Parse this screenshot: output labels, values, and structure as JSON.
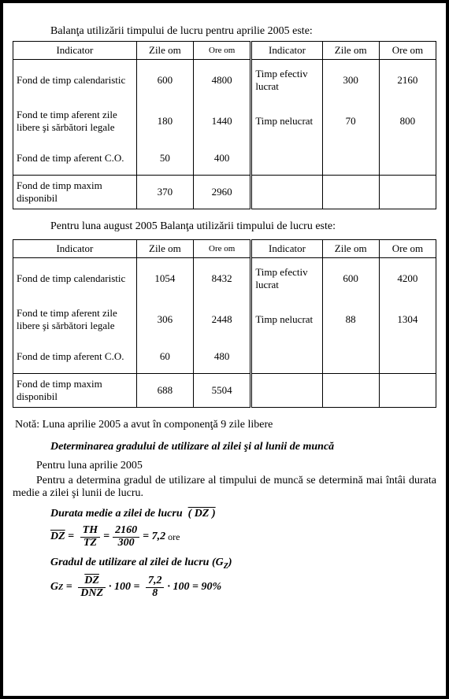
{
  "intro1": "Balanţa utilizării timpului de lucru pentru aprilie 2005 este:",
  "intro2": "Pentru luna august 2005 Balanţa utilizării timpului de lucru este:",
  "headers": {
    "ind": "Indicator",
    "zile": "Zile om",
    "ore": "Ore om"
  },
  "table1": {
    "left": [
      {
        "ind": "Fond de timp calendaristic",
        "z": "600",
        "o": "4800"
      },
      {
        "ind": "Fond te timp aferent zile libere şi sărbători legale",
        "z": "180",
        "o": "1440"
      },
      {
        "ind": "Fond de timp aferent C.O.",
        "z": "50",
        "o": "400"
      },
      {
        "ind": "Fond de timp maxim disponibil",
        "z": "370",
        "o": "2960"
      }
    ],
    "right": [
      {
        "ind": "Timp efectiv lucrat",
        "z": "300",
        "o": "2160"
      },
      {
        "ind": "Timp nelucrat",
        "z": "70",
        "o": "800"
      }
    ]
  },
  "table2": {
    "left": [
      {
        "ind": "Fond de timp calendaristic",
        "z": "1054",
        "o": "8432"
      },
      {
        "ind": "Fond te timp aferent zile libere şi sărbători legale",
        "z": "306",
        "o": "2448"
      },
      {
        "ind": "Fond de timp aferent C.O.",
        "z": "60",
        "o": "480"
      },
      {
        "ind": "Fond de timp maxim disponibil",
        "z": "688",
        "o": "5504"
      }
    ],
    "right": [
      {
        "ind": "Timp efectiv lucrat",
        "z": "600",
        "o": "4200"
      },
      {
        "ind": "Timp nelucrat",
        "z": "88",
        "o": "1304"
      }
    ]
  },
  "note": "Notă: Luna aprilie 2005 a avut în componenţă 9 zile libere",
  "subtitle": "Determinarea gradului de utilizare al zilei şi al lunii de muncă",
  "para1": "Pentru luna aprilie 2005",
  "para2": "Pentru a determina gradul de utilizare al timpului de muncă se determină mai întâi durata medie a zilei şi lunii de lucru.",
  "sub_d": "Durata medie a zilei de lucru",
  "dz_symbol": "( DZ )",
  "eq1": {
    "lhs": "DZ",
    "f1_top": "TH",
    "f1_bot": "TZ",
    "f2_top": "2160",
    "f2_bot": "300",
    "result": "7,2",
    "unit": "ore"
  },
  "sub_g": "Gradul de utilizare al zilei de lucru (G",
  "sub_g_sub": "Z",
  "sub_g_end": ")",
  "eq2": {
    "lhs": "G",
    "lhs_sub": "Z",
    "f1_top": "DZ",
    "f1_bot": "DNZ",
    "m100a": "100",
    "f2_top": "7,2",
    "f2_bot": "8",
    "m100b": "100",
    "result": "90%"
  }
}
